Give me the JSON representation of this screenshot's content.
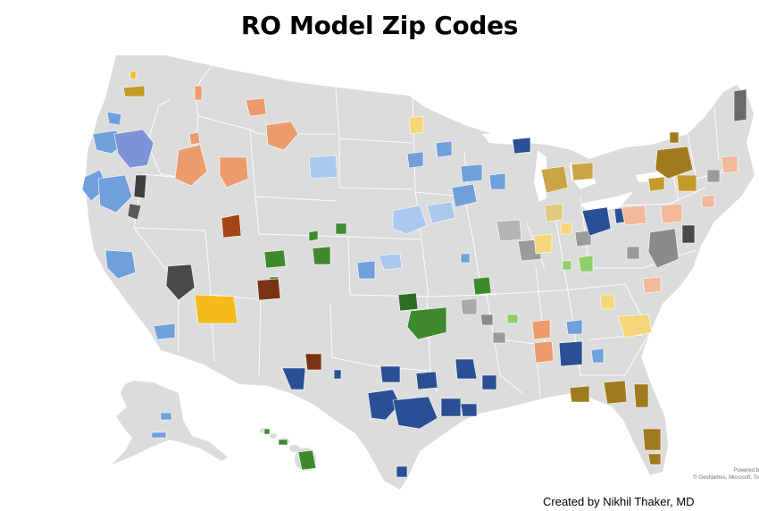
{
  "title": "RO Model Zip Codes",
  "attribution": {
    "powered_by": "Powered b",
    "sources": "© GeoNames, Microsoft, To"
  },
  "credit": "Created by Nikhil Thaker, MD",
  "colors": {
    "land": "#dcdcdc",
    "border": "#ffffff",
    "light_blue": "#6fa0dc",
    "pale_blue": "#a9c8ec",
    "navy": "#2b4f94",
    "orange": "#ec9b6c",
    "rust": "#a64418",
    "brown": "#7a3214",
    "gold": "#f3bb1c",
    "pale_yellow": "#f5d77a",
    "olive_gold": "#a07a1c",
    "dark_gray": "#4a4a4a",
    "mid_gray": "#9a9a9a",
    "green": "#3f8a2e",
    "light_green": "#8fcf6a",
    "peach": "#f2b89a"
  }
}
